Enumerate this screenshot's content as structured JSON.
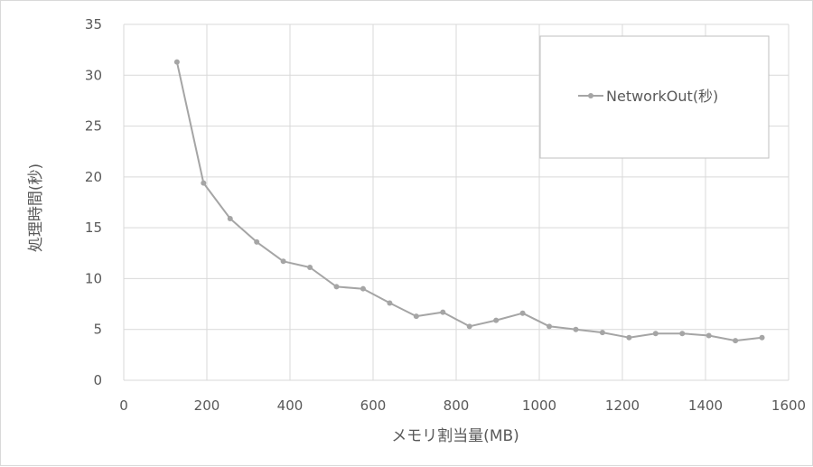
{
  "chart_data": {
    "type": "line",
    "title": "",
    "xlabel": "メモリ割当量(MB)",
    "ylabel": "処理時間(秒)",
    "xlim": [
      0,
      1600
    ],
    "ylim": [
      0,
      35
    ],
    "xticks": [
      "0",
      "200",
      "400",
      "600",
      "800",
      "1000",
      "1200",
      "1400",
      "1600"
    ],
    "yticks": [
      "0",
      "5",
      "10",
      "15",
      "20",
      "25",
      "30",
      "35"
    ],
    "grid": true,
    "legend_position": "top-right",
    "series": [
      {
        "name": "NetworkOut(秒)",
        "color": "#a5a5a5",
        "x": [
          128,
          192,
          256,
          320,
          384,
          448,
          512,
          576,
          640,
          704,
          768,
          832,
          896,
          960,
          1024,
          1088,
          1152,
          1216,
          1280,
          1344,
          1408,
          1472,
          1536
        ],
        "y": [
          31.3,
          19.4,
          15.9,
          13.6,
          11.7,
          11.1,
          9.2,
          9.0,
          7.6,
          6.3,
          6.7,
          5.3,
          5.9,
          6.6,
          5.3,
          5.0,
          4.7,
          4.2,
          4.6,
          4.6,
          4.4,
          3.9,
          4.2
        ]
      }
    ]
  }
}
